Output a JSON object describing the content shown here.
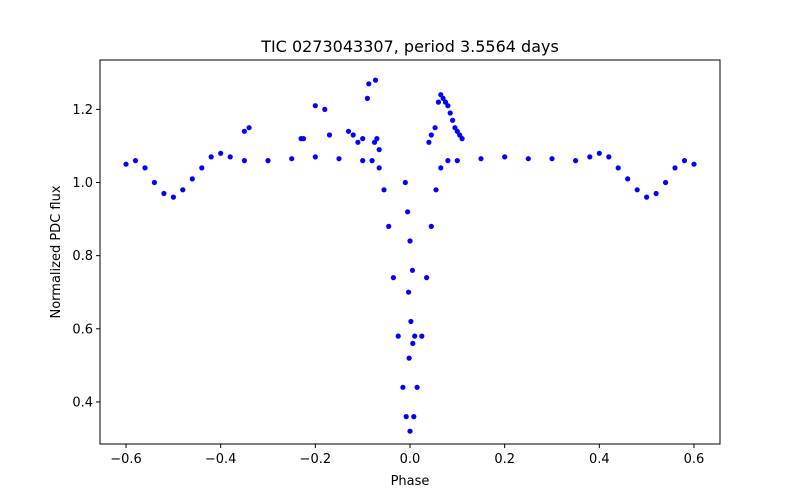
{
  "chart_data": {
    "type": "scatter",
    "title": "TIC 0273043307, period 3.5564 days",
    "xlabel": "Phase",
    "ylabel": "Normalized PDC flux",
    "xlim": [
      -0.655,
      0.655
    ],
    "ylim": [
      0.285,
      1.335
    ],
    "xticks": [
      -0.6,
      -0.4,
      -0.2,
      0.0,
      0.2,
      0.4,
      0.6
    ],
    "xtick_labels": [
      "−0.6",
      "−0.4",
      "−0.2",
      "0.0",
      "0.2",
      "0.4",
      "0.6"
    ],
    "yticks": [
      0.4,
      0.6,
      0.8,
      1.0,
      1.2
    ],
    "ytick_labels": [
      "0.4",
      "0.6",
      "0.8",
      "1.0",
      "1.2"
    ],
    "grid": false,
    "legend": "none",
    "marker_color": "#0000ff",
    "series": [
      {
        "points": [
          [
            -0.6,
            1.05
          ],
          [
            -0.58,
            1.06
          ],
          [
            -0.56,
            1.04
          ],
          [
            -0.54,
            1.0
          ],
          [
            -0.52,
            0.97
          ],
          [
            -0.5,
            0.96
          ],
          [
            -0.48,
            0.98
          ],
          [
            -0.46,
            1.01
          ],
          [
            -0.44,
            1.04
          ],
          [
            -0.42,
            1.07
          ],
          [
            -0.4,
            1.08
          ],
          [
            -0.38,
            1.07
          ],
          [
            -0.35,
            1.06
          ],
          [
            -0.3,
            1.06
          ],
          [
            -0.25,
            1.065
          ],
          [
            -0.2,
            1.07
          ],
          [
            -0.15,
            1.065
          ],
          [
            -0.1,
            1.06
          ],
          [
            -0.08,
            1.06
          ],
          [
            -0.065,
            1.04
          ],
          [
            -0.055,
            0.98
          ],
          [
            -0.045,
            0.88
          ],
          [
            -0.035,
            0.74
          ],
          [
            -0.025,
            0.58
          ],
          [
            -0.015,
            0.44
          ],
          [
            -0.008,
            0.36
          ],
          [
            0.0,
            0.32
          ],
          [
            0.008,
            0.36
          ],
          [
            0.015,
            0.44
          ],
          [
            0.025,
            0.58
          ],
          [
            0.035,
            0.74
          ],
          [
            0.045,
            0.88
          ],
          [
            0.055,
            0.98
          ],
          [
            0.065,
            1.04
          ],
          [
            0.08,
            1.06
          ],
          [
            0.1,
            1.06
          ],
          [
            0.15,
            1.065
          ],
          [
            0.2,
            1.07
          ],
          [
            0.25,
            1.065
          ],
          [
            0.3,
            1.065
          ],
          [
            0.35,
            1.06
          ],
          [
            0.38,
            1.07
          ],
          [
            0.4,
            1.08
          ],
          [
            0.42,
            1.07
          ],
          [
            0.44,
            1.04
          ],
          [
            0.46,
            1.01
          ],
          [
            0.48,
            0.98
          ],
          [
            0.5,
            0.96
          ],
          [
            0.52,
            0.97
          ],
          [
            0.54,
            1.0
          ],
          [
            0.56,
            1.04
          ],
          [
            0.58,
            1.06
          ],
          [
            0.6,
            1.05
          ],
          [
            -0.087,
            1.27
          ],
          [
            -0.073,
            1.28
          ],
          [
            -0.09,
            1.23
          ],
          [
            -0.2,
            1.21
          ],
          [
            -0.18,
            1.2
          ],
          [
            -0.34,
            1.15
          ],
          [
            -0.35,
            1.14
          ],
          [
            -0.23,
            1.12
          ],
          [
            -0.225,
            1.12
          ],
          [
            -0.17,
            1.13
          ],
          [
            -0.13,
            1.14
          ],
          [
            -0.12,
            1.13
          ],
          [
            -0.11,
            1.11
          ],
          [
            -0.1,
            1.12
          ],
          [
            -0.075,
            1.11
          ],
          [
            -0.07,
            1.12
          ],
          [
            -0.065,
            1.09
          ],
          [
            0.06,
            1.22
          ],
          [
            0.065,
            1.24
          ],
          [
            0.07,
            1.23
          ],
          [
            0.075,
            1.22
          ],
          [
            0.08,
            1.21
          ],
          [
            0.085,
            1.19
          ],
          [
            0.09,
            1.17
          ],
          [
            0.095,
            1.15
          ],
          [
            0.1,
            1.14
          ],
          [
            0.105,
            1.13
          ],
          [
            0.11,
            1.12
          ],
          [
            0.053,
            1.15
          ],
          [
            0.045,
            1.13
          ],
          [
            0.04,
            1.11
          ],
          [
            -0.01,
            1.0
          ],
          [
            -0.005,
            0.92
          ],
          [
            0.0,
            0.84
          ],
          [
            0.005,
            0.76
          ],
          [
            -0.003,
            0.7
          ],
          [
            0.002,
            0.62
          ],
          [
            0.006,
            0.56
          ],
          [
            0.01,
            0.58
          ],
          [
            -0.002,
            0.52
          ]
        ]
      }
    ]
  }
}
